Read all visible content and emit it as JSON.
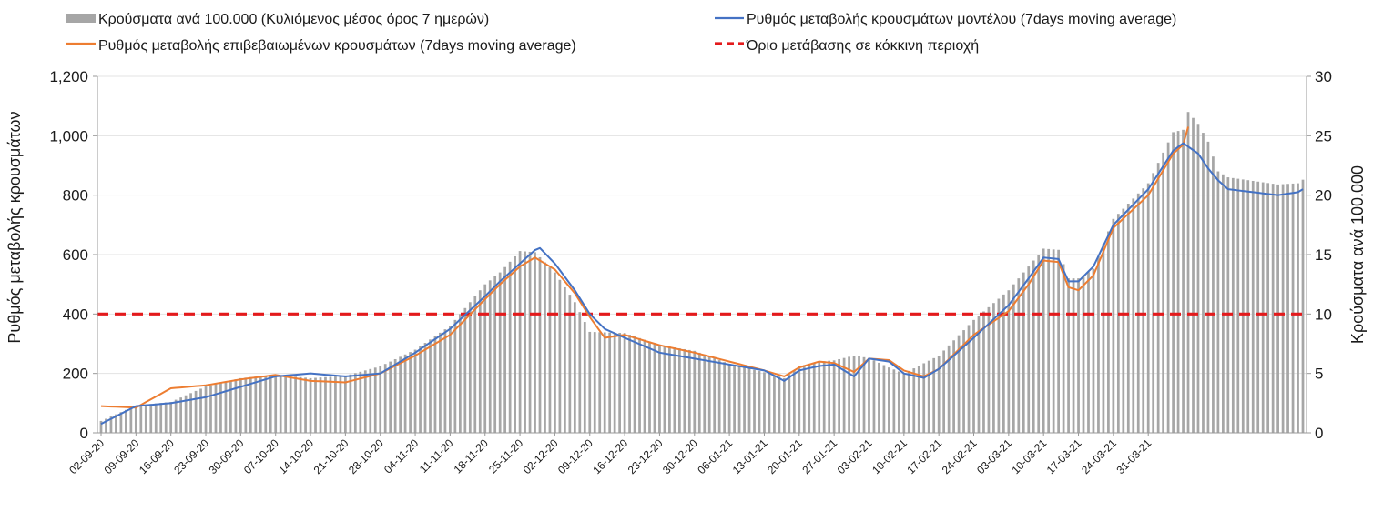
{
  "chart_data": {
    "type": "bar+line",
    "start_date": "02-09-20",
    "x_tick_labels": [
      "02-09-20",
      "09-09-20",
      "16-09-20",
      "23-09-20",
      "30-09-20",
      "07-10-20",
      "14-10-20",
      "21-10-20",
      "28-10-20",
      "04-11-20",
      "11-11-20",
      "18-11-20",
      "25-11-20",
      "02-12-20",
      "09-12-20",
      "16-12-20",
      "23-12-20",
      "30-12-20",
      "06-01-21",
      "13-01-21",
      "20-01-21",
      "27-01-21",
      "03-02-21",
      "10-02-21",
      "17-02-21",
      "24-02-21",
      "03-03-21",
      "10-03-21",
      "17-03-21",
      "24-03-21",
      "31-03-21"
    ],
    "y_left": {
      "label": "Ρυθμός μεταβολής κρουσμάτων",
      "ylim": [
        0,
        1200
      ],
      "ticks": [
        "0",
        "200",
        "400",
        "600",
        "800",
        "1,000",
        "1,200"
      ],
      "tick_values": [
        0,
        200,
        400,
        600,
        800,
        1000,
        1200
      ]
    },
    "y_right": {
      "label": "Κρούσματα ανά 100.000",
      "ylim": [
        0,
        30
      ],
      "ticks": [
        "0",
        "5",
        "10",
        "15",
        "20",
        "25",
        "30"
      ],
      "tick_values": [
        0,
        5,
        10,
        15,
        20,
        25,
        30
      ]
    },
    "threshold": {
      "name": "Όριο μετάβασης σε κόκκινη περιοχή",
      "value": 400,
      "color": "#e31a1c"
    },
    "legend_position": "top",
    "series": [
      {
        "name": "Κρούσματα ανά 100.000 (Κυλιόμενος μέσος όρος 7 ημερών)",
        "kind": "bar",
        "axis": "right",
        "color": "#a6a6a6",
        "keypoints": [
          [
            0,
            1.0
          ],
          [
            7,
            2.3
          ],
          [
            14,
            2.6
          ],
          [
            21,
            3.9
          ],
          [
            28,
            4.6
          ],
          [
            35,
            4.9
          ],
          [
            42,
            4.6
          ],
          [
            49,
            4.8
          ],
          [
            56,
            5.6
          ],
          [
            63,
            7.0
          ],
          [
            70,
            9.0
          ],
          [
            77,
            12.5
          ],
          [
            80,
            13.5
          ],
          [
            84,
            15.3
          ],
          [
            87,
            15.2
          ],
          [
            91,
            13.5
          ],
          [
            95,
            11.0
          ],
          [
            98,
            8.5
          ],
          [
            105,
            8.4
          ],
          [
            112,
            7.4
          ],
          [
            119,
            6.9
          ],
          [
            126,
            5.8
          ],
          [
            133,
            5.1
          ],
          [
            137,
            4.6
          ],
          [
            140,
            5.6
          ],
          [
            144,
            6.0
          ],
          [
            147,
            6.1
          ],
          [
            151,
            6.5
          ],
          [
            154,
            6.3
          ],
          [
            158,
            5.5
          ],
          [
            161,
            5.0
          ],
          [
            168,
            6.5
          ],
          [
            175,
            9.5
          ],
          [
            182,
            12.0
          ],
          [
            186,
            14.0
          ],
          [
            189,
            15.5
          ],
          [
            192,
            15.4
          ],
          [
            194,
            13.0
          ],
          [
            196,
            13.0
          ],
          [
            199,
            13.8
          ],
          [
            203,
            18.0
          ],
          [
            210,
            21.0
          ],
          [
            215,
            25.3
          ],
          [
            217,
            25.5
          ],
          [
            218,
            27.0
          ],
          [
            220,
            26.0
          ],
          [
            222,
            24.5
          ],
          [
            224,
            22.0
          ],
          [
            226,
            21.5
          ],
          [
            231,
            21.2
          ],
          [
            236,
            20.9
          ],
          [
            240,
            21.0
          ],
          [
            241,
            21.3
          ]
        ]
      },
      {
        "name": "Ρυθμός μεταβολής κρουσμάτων μοντέλου (7days moving average)",
        "kind": "line",
        "axis": "left",
        "color": "#4472c4",
        "keypoints": [
          [
            0,
            30
          ],
          [
            7,
            90
          ],
          [
            14,
            100
          ],
          [
            21,
            120
          ],
          [
            28,
            155
          ],
          [
            35,
            190
          ],
          [
            42,
            200
          ],
          [
            49,
            190
          ],
          [
            56,
            200
          ],
          [
            63,
            270
          ],
          [
            70,
            350
          ],
          [
            77,
            460
          ],
          [
            80,
            510
          ],
          [
            84,
            570
          ],
          [
            87,
            615
          ],
          [
            88,
            622
          ],
          [
            91,
            570
          ],
          [
            95,
            480
          ],
          [
            98,
            400
          ],
          [
            101,
            350
          ],
          [
            105,
            320
          ],
          [
            112,
            270
          ],
          [
            119,
            250
          ],
          [
            126,
            230
          ],
          [
            133,
            210
          ],
          [
            137,
            175
          ],
          [
            140,
            210
          ],
          [
            144,
            225
          ],
          [
            147,
            230
          ],
          [
            151,
            190
          ],
          [
            154,
            250
          ],
          [
            158,
            240
          ],
          [
            161,
            200
          ],
          [
            165,
            185
          ],
          [
            168,
            215
          ],
          [
            175,
            320
          ],
          [
            182,
            430
          ],
          [
            186,
            520
          ],
          [
            189,
            590
          ],
          [
            192,
            585
          ],
          [
            194,
            510
          ],
          [
            196,
            510
          ],
          [
            199,
            560
          ],
          [
            203,
            700
          ],
          [
            210,
            820
          ],
          [
            215,
            950
          ],
          [
            217,
            975
          ],
          [
            220,
            940
          ],
          [
            222,
            890
          ],
          [
            224,
            850
          ],
          [
            226,
            820
          ],
          [
            231,
            810
          ],
          [
            236,
            800
          ],
          [
            240,
            810
          ],
          [
            241,
            820
          ]
        ]
      },
      {
        "name": "Ρυθμός μεταβολής επιβεβαιωμένων κρουσμάτων (7days moving average)",
        "kind": "line",
        "axis": "left",
        "color": "#ed7d31",
        "keypoints": [
          [
            0,
            90
          ],
          [
            7,
            85
          ],
          [
            14,
            150
          ],
          [
            21,
            160
          ],
          [
            28,
            180
          ],
          [
            35,
            195
          ],
          [
            42,
            175
          ],
          [
            49,
            170
          ],
          [
            56,
            200
          ],
          [
            63,
            260
          ],
          [
            70,
            330
          ],
          [
            77,
            450
          ],
          [
            80,
            500
          ],
          [
            84,
            560
          ],
          [
            87,
            590
          ],
          [
            91,
            550
          ],
          [
            95,
            470
          ],
          [
            98,
            390
          ],
          [
            101,
            320
          ],
          [
            105,
            330
          ],
          [
            112,
            295
          ],
          [
            119,
            270
          ],
          [
            126,
            240
          ],
          [
            133,
            210
          ],
          [
            137,
            190
          ],
          [
            140,
            220
          ],
          [
            144,
            240
          ],
          [
            147,
            235
          ],
          [
            151,
            205
          ],
          [
            154,
            250
          ],
          [
            158,
            245
          ],
          [
            161,
            210
          ],
          [
            165,
            190
          ],
          [
            168,
            215
          ],
          [
            175,
            330
          ],
          [
            182,
            410
          ],
          [
            186,
            500
          ],
          [
            189,
            580
          ],
          [
            192,
            575
          ],
          [
            194,
            490
          ],
          [
            196,
            480
          ],
          [
            199,
            530
          ],
          [
            203,
            690
          ],
          [
            210,
            800
          ],
          [
            215,
            940
          ],
          [
            217,
            970
          ],
          [
            218,
            1030
          ]
        ]
      }
    ]
  }
}
